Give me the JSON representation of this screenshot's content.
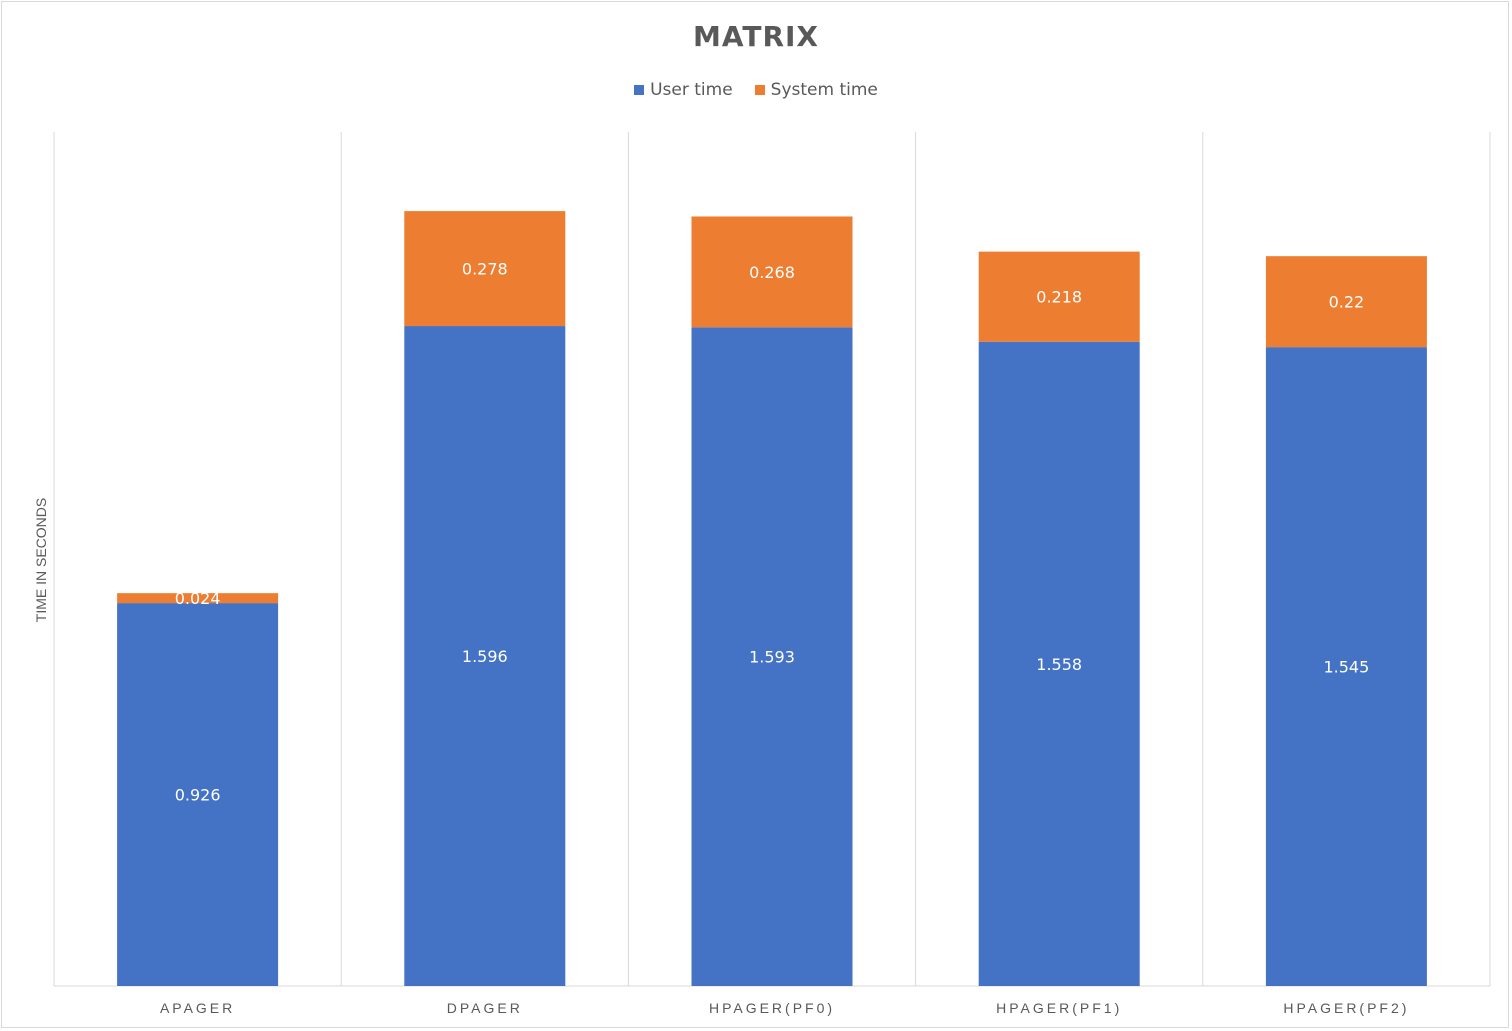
{
  "chart_data": {
    "type": "bar",
    "stacked": true,
    "title": "MATRIX",
    "ylabel": "TIME IN SECONDS",
    "xlabel": "",
    "categories": [
      "APAGER",
      "DPAGER",
      "HPAGER(PF0)",
      "HPAGER(PF1)",
      "HPAGER(PF2)"
    ],
    "series": [
      {
        "name": "User time",
        "values": [
          0.926,
          1.596,
          1.593,
          1.558,
          1.545
        ],
        "color": "#4472C4"
      },
      {
        "name": "System time",
        "values": [
          0.024,
          0.278,
          0.268,
          0.218,
          0.22
        ],
        "color": "#ED7D31"
      }
    ],
    "ylim": [
      0,
      2.0
    ],
    "grid": true,
    "legend": "top-center",
    "data_labels": true
  }
}
